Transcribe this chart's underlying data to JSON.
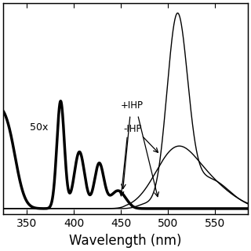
{
  "xlabel": "Wavelength (nm)",
  "xlim": [
    325,
    585
  ],
  "ylim": [
    -0.03,
    1.05
  ],
  "xticks": [
    350,
    400,
    450,
    500,
    550
  ],
  "background_color": "#ffffff",
  "label_50x": "50x",
  "label_plus_ihp": "+IHP",
  "label_minus_ihp": "-IHP",
  "xlabel_fontsize": 12,
  "tick_fontsize": 10
}
